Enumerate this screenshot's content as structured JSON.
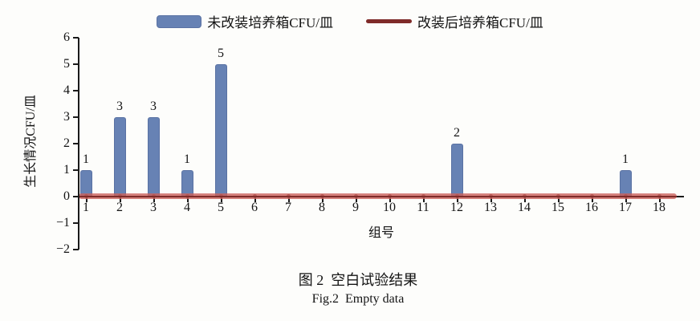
{
  "legend": {
    "bar_label": "未改装培养箱CFU/皿",
    "line_label": "改装后培养箱CFU/皿"
  },
  "axes": {
    "y_title": "生长情况CFU/皿",
    "x_title": "组号",
    "y_ticks": [
      "6",
      "5",
      "4",
      "3",
      "2",
      "1",
      "0",
      "−1",
      "−2"
    ],
    "x_ticks": [
      "1",
      "2",
      "3",
      "4",
      "5",
      "6",
      "7",
      "8",
      "9",
      "10",
      "11",
      "12",
      "13",
      "14",
      "15",
      "16",
      "17",
      "18"
    ]
  },
  "caption": {
    "zh": "图 2  空白试验结果",
    "en": "Fig.2  Empty data"
  },
  "colors": {
    "bar_fill": "#6782b4",
    "bar_border": "#5a72a3",
    "line_halo": "#cb625d",
    "line_core": "#7f2b29",
    "line_marker": "#b25450",
    "axis": "#1a1a1a",
    "text": "#141414"
  },
  "chart_data": {
    "type": "bar",
    "categories": [
      1,
      2,
      3,
      4,
      5,
      6,
      7,
      8,
      9,
      10,
      11,
      12,
      13,
      14,
      15,
      16,
      17,
      18
    ],
    "series": [
      {
        "name": "未改装培养箱CFU/皿",
        "type": "bar",
        "values": [
          1,
          3,
          3,
          1,
          5,
          0,
          0,
          0,
          0,
          0,
          0,
          2,
          0,
          0,
          0,
          0,
          1,
          0
        ],
        "data_labels": [
          "1",
          "3",
          "3",
          "1",
          "5",
          "",
          "",
          "",
          "",
          "",
          "",
          "2",
          "",
          "",
          "",
          "",
          "1",
          ""
        ],
        "color": "#6782b4"
      },
      {
        "name": "改装后培养箱CFU/皿",
        "type": "line",
        "values": [
          0,
          0,
          0,
          0,
          0,
          0,
          0,
          0,
          0,
          0,
          0,
          0,
          0,
          0,
          0,
          0,
          0,
          0
        ],
        "color": "#7f2b29"
      }
    ],
    "title": "图 2  空白试验结果",
    "subtitle": "Fig.2  Empty data",
    "xlabel": "组号",
    "ylabel": "生长情况CFU/皿",
    "ylim": [
      -2,
      6
    ],
    "xlim_categories": [
      1,
      18
    ],
    "grid": false,
    "legend_position": "top",
    "data_labels": true
  }
}
